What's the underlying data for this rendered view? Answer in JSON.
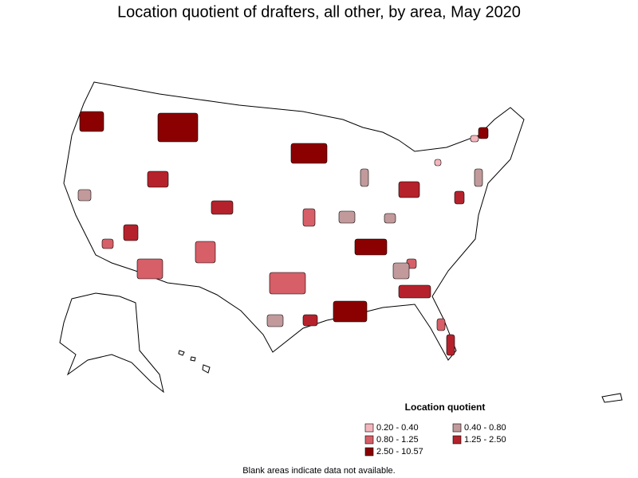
{
  "title": "Location quotient of drafters, all other, by area, May 2020",
  "legend": {
    "title": "Location quotient",
    "items": [
      {
        "label": "0.20 - 0.40",
        "color": "#f4b6bd"
      },
      {
        "label": "0.40 - 0.80",
        "color": "#c29a9c"
      },
      {
        "label": "0.80 - 1.25",
        "color": "#d65f68"
      },
      {
        "label": "1.25 - 2.50",
        "color": "#b5222c"
      },
      {
        "label": "2.50 - 10.57",
        "color": "#8b0000"
      }
    ]
  },
  "note": "Blank areas indicate data not available."
}
